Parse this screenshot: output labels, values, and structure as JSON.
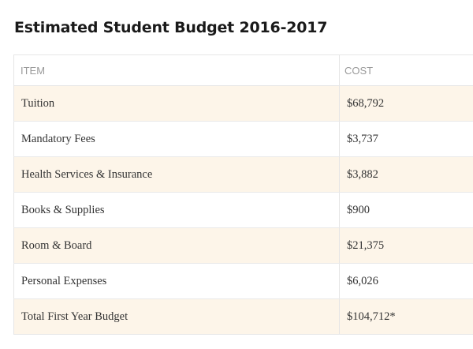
{
  "title": "Estimated Student Budget 2016-2017",
  "table": {
    "headers": {
      "item": "ITEM",
      "cost": "COST"
    },
    "rows": [
      {
        "item": "Tuition",
        "cost": "$68,792"
      },
      {
        "item": "Mandatory Fees",
        "cost": "$3,737"
      },
      {
        "item": "Health Services & Insurance",
        "cost": "$3,882"
      },
      {
        "item": "Books & Supplies",
        "cost": "$900"
      },
      {
        "item": "Room & Board",
        "cost": "$21,375"
      },
      {
        "item": "Personal Expenses",
        "cost": "$6,026"
      },
      {
        "item": "Total First Year Budget",
        "cost": "$104,712*"
      }
    ]
  },
  "colors": {
    "shaded_row": "#fdf5e9",
    "border": "#e6e6e6",
    "header_text": "#9a9a9a",
    "body_text": "#333333"
  }
}
